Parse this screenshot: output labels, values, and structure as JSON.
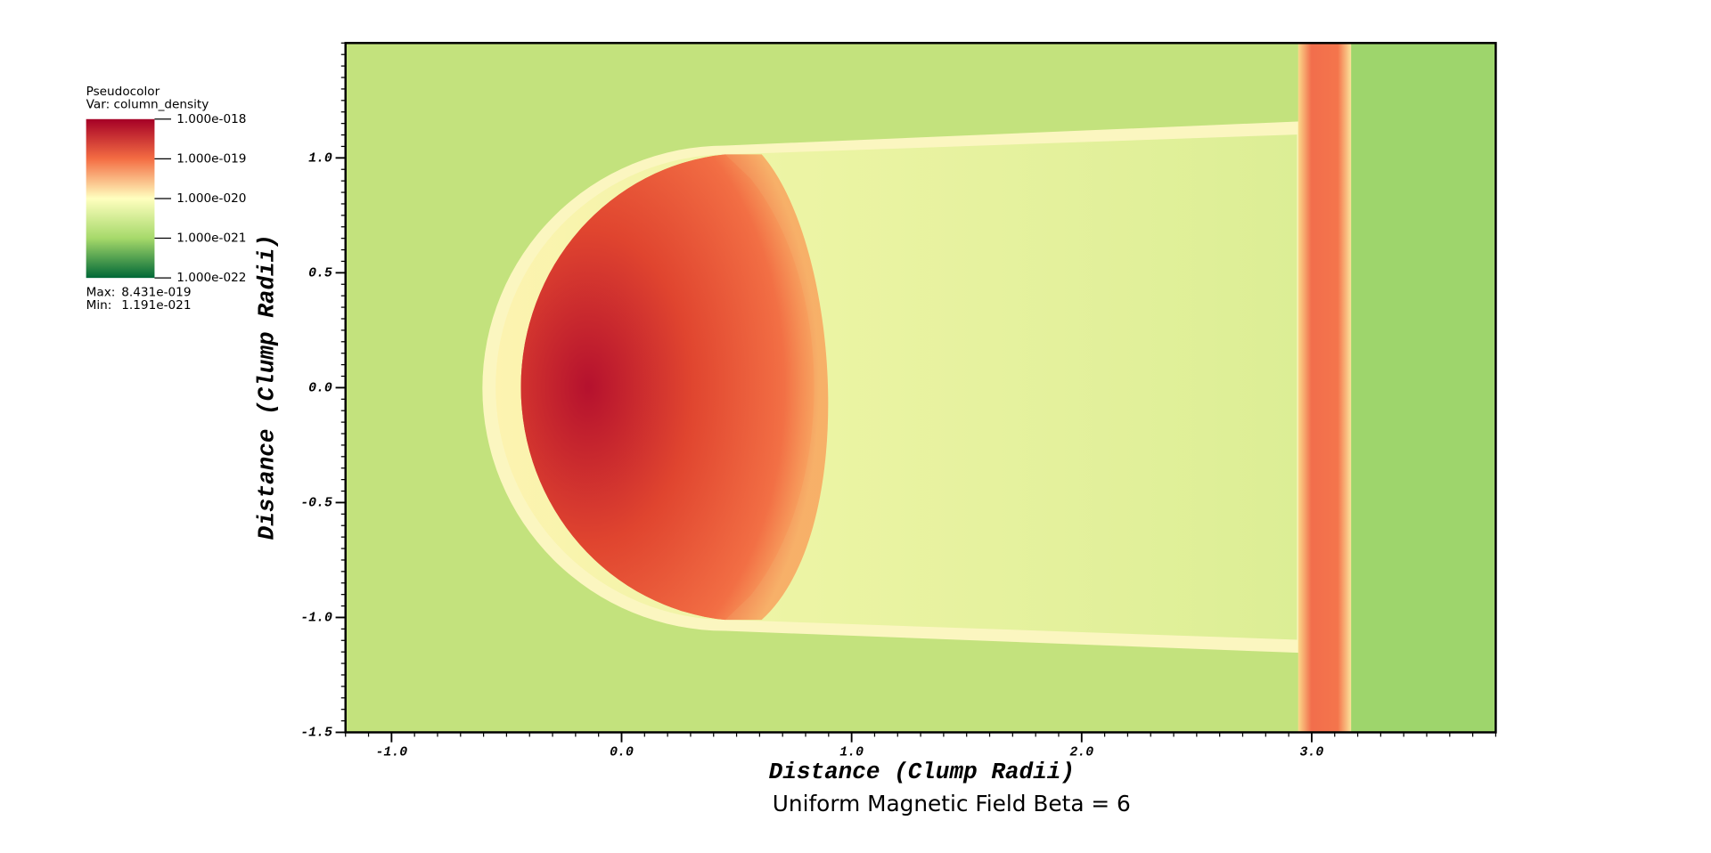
{
  "chart_data": {
    "type": "pseudocolor",
    "title": "Uniform Magnetic Field Beta = 6",
    "x_label": "Distance (Clump Radii)",
    "y_label": "Distance (Clump Radii)",
    "xlim": [
      -1.2,
      3.8
    ],
    "ylim": [
      -1.5,
      1.5
    ],
    "xticks": [
      {
        "value": -1,
        "label": "-1.0"
      },
      {
        "value": 0,
        "label": "0.0"
      },
      {
        "value": 1,
        "label": "1.0"
      },
      {
        "value": 2,
        "label": "2.0"
      },
      {
        "value": 3,
        "label": "3.0"
      }
    ],
    "yticks": [
      {
        "value": -1.5,
        "label": "-1.5"
      },
      {
        "value": -1,
        "label": "-1.0"
      },
      {
        "value": -0.5,
        "label": "-0.5"
      },
      {
        "value": 0,
        "label": "0.0"
      },
      {
        "value": 0.5,
        "label": "0.5"
      },
      {
        "value": 1,
        "label": "1.0"
      }
    ],
    "legend": {
      "plot": "Pseudocolor",
      "variable": "Var: column_density",
      "log_scale": true,
      "clim": [
        1e-22,
        1e-18
      ],
      "ticks": [
        {
          "value": 1e-18,
          "label": "1.000e-018"
        },
        {
          "value": 1e-19,
          "label": "1.000e-019"
        },
        {
          "value": 1e-20,
          "label": "1.000e-020"
        },
        {
          "value": 1e-21,
          "label": "1.000e-021"
        },
        {
          "value": 1e-22,
          "label": "1.000e-022"
        }
      ],
      "max_label": "Max:",
      "max": {
        "value": 8.431e-19,
        "label": "8.431e-019"
      },
      "min_label": "Min:",
      "min": {
        "value": 1.191e-21,
        "label": "1.191e-021"
      }
    }
  }
}
